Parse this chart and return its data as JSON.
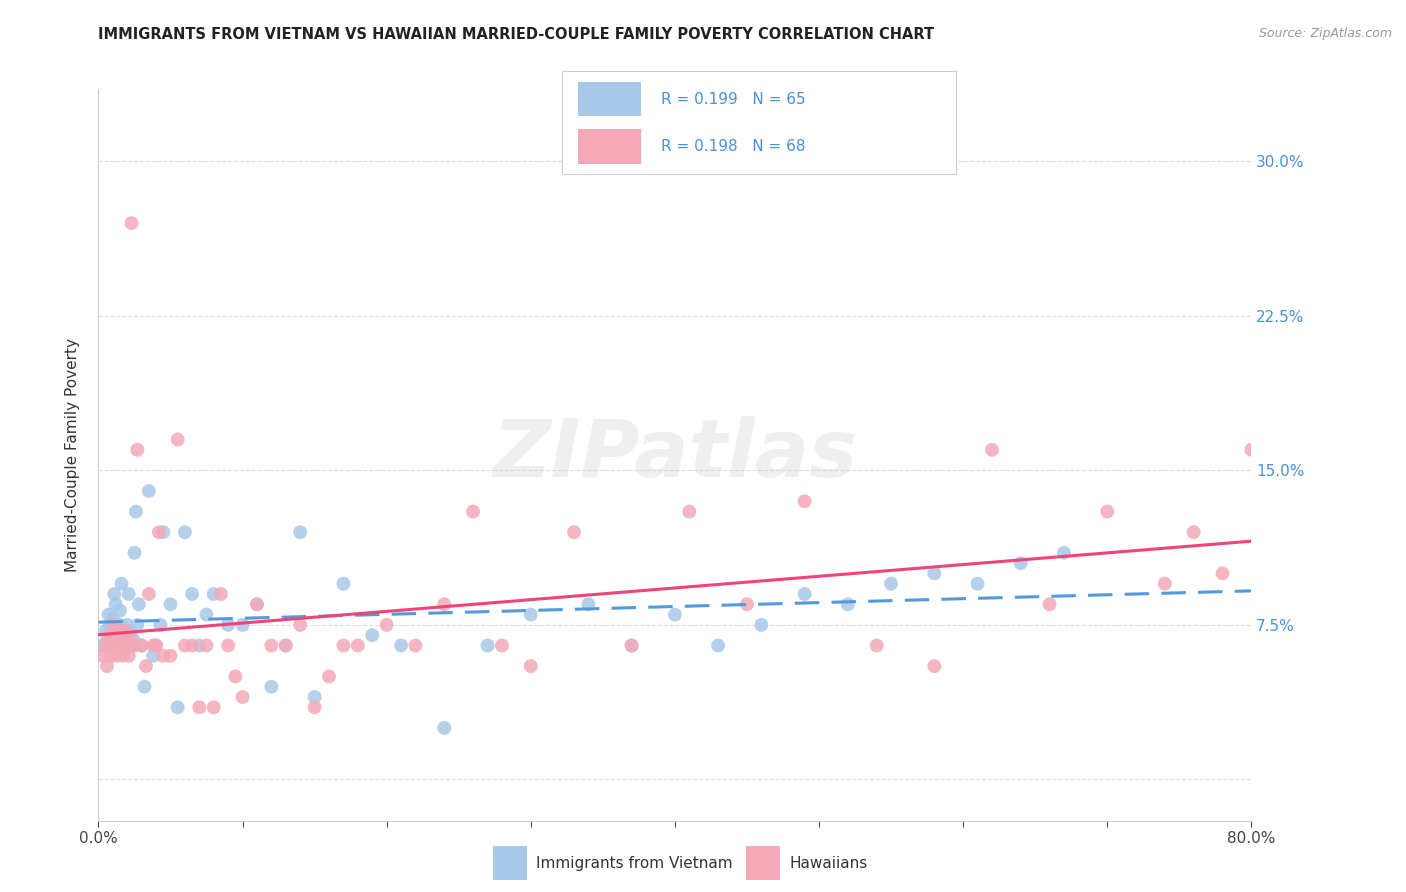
{
  "title": "IMMIGRANTS FROM VIETNAM VS HAWAIIAN MARRIED-COUPLE FAMILY POVERTY CORRELATION CHART",
  "source": "Source: ZipAtlas.com",
  "ylabel": "Married-Couple Family Poverty",
  "ytick_positions": [
    0.0,
    0.075,
    0.15,
    0.225,
    0.3
  ],
  "ytick_labels": [
    "",
    "7.5%",
    "15.0%",
    "22.5%",
    "30.0%"
  ],
  "xlim": [
    0.0,
    0.8
  ],
  "ylim": [
    -0.02,
    0.335
  ],
  "watermark_text": "ZIPatlas",
  "color_vietnam": "#a8c8e8",
  "color_hawaii": "#f4a8b8",
  "trendline_vietnam_color": "#5599dd",
  "trendline_hawaii_color": "#ee4477",
  "legend_text_color": "#4a90d9",
  "source_color": "#999999",
  "title_color": "#222222",
  "grid_color": "#dddddd",
  "vietnam_x": [
    0.003,
    0.005,
    0.006,
    0.007,
    0.008,
    0.009,
    0.01,
    0.011,
    0.012,
    0.013,
    0.014,
    0.015,
    0.015,
    0.016,
    0.017,
    0.018,
    0.019,
    0.02,
    0.021,
    0.022,
    0.023,
    0.024,
    0.025,
    0.026,
    0.027,
    0.028,
    0.03,
    0.032,
    0.035,
    0.038,
    0.04,
    0.043,
    0.045,
    0.05,
    0.055,
    0.06,
    0.065,
    0.07,
    0.075,
    0.08,
    0.09,
    0.1,
    0.11,
    0.12,
    0.13,
    0.14,
    0.15,
    0.17,
    0.19,
    0.21,
    0.24,
    0.27,
    0.3,
    0.34,
    0.37,
    0.4,
    0.43,
    0.46,
    0.49,
    0.52,
    0.55,
    0.58,
    0.61,
    0.64,
    0.67
  ],
  "vietnam_y": [
    0.065,
    0.072,
    0.068,
    0.08,
    0.075,
    0.07,
    0.078,
    0.09,
    0.085,
    0.072,
    0.068,
    0.075,
    0.082,
    0.095,
    0.072,
    0.065,
    0.068,
    0.075,
    0.09,
    0.072,
    0.065,
    0.068,
    0.11,
    0.13,
    0.075,
    0.085,
    0.065,
    0.045,
    0.14,
    0.06,
    0.065,
    0.075,
    0.12,
    0.085,
    0.035,
    0.12,
    0.09,
    0.065,
    0.08,
    0.09,
    0.075,
    0.075,
    0.085,
    0.045,
    0.065,
    0.12,
    0.04,
    0.095,
    0.07,
    0.065,
    0.025,
    0.065,
    0.08,
    0.085,
    0.065,
    0.08,
    0.065,
    0.075,
    0.09,
    0.085,
    0.095,
    0.1,
    0.095,
    0.105,
    0.11
  ],
  "hawaii_x": [
    0.003,
    0.005,
    0.006,
    0.007,
    0.008,
    0.009,
    0.01,
    0.011,
    0.012,
    0.013,
    0.014,
    0.015,
    0.016,
    0.017,
    0.018,
    0.019,
    0.02,
    0.021,
    0.022,
    0.023,
    0.025,
    0.027,
    0.03,
    0.033,
    0.035,
    0.038,
    0.04,
    0.042,
    0.045,
    0.05,
    0.055,
    0.06,
    0.065,
    0.07,
    0.075,
    0.08,
    0.085,
    0.09,
    0.095,
    0.1,
    0.11,
    0.12,
    0.13,
    0.14,
    0.15,
    0.16,
    0.17,
    0.18,
    0.2,
    0.22,
    0.24,
    0.26,
    0.28,
    0.3,
    0.33,
    0.37,
    0.41,
    0.45,
    0.49,
    0.54,
    0.58,
    0.62,
    0.66,
    0.7,
    0.74,
    0.76,
    0.78,
    0.8
  ],
  "hawaii_y": [
    0.06,
    0.065,
    0.055,
    0.07,
    0.065,
    0.06,
    0.068,
    0.075,
    0.065,
    0.06,
    0.068,
    0.072,
    0.065,
    0.06,
    0.065,
    0.072,
    0.065,
    0.06,
    0.068,
    0.27,
    0.065,
    0.16,
    0.065,
    0.055,
    0.09,
    0.065,
    0.065,
    0.12,
    0.06,
    0.06,
    0.165,
    0.065,
    0.065,
    0.035,
    0.065,
    0.035,
    0.09,
    0.065,
    0.05,
    0.04,
    0.085,
    0.065,
    0.065,
    0.075,
    0.035,
    0.05,
    0.065,
    0.065,
    0.075,
    0.065,
    0.085,
    0.13,
    0.065,
    0.055,
    0.12,
    0.065,
    0.13,
    0.085,
    0.135,
    0.065,
    0.055,
    0.16,
    0.085,
    0.13,
    0.095,
    0.12,
    0.1,
    0.16
  ]
}
